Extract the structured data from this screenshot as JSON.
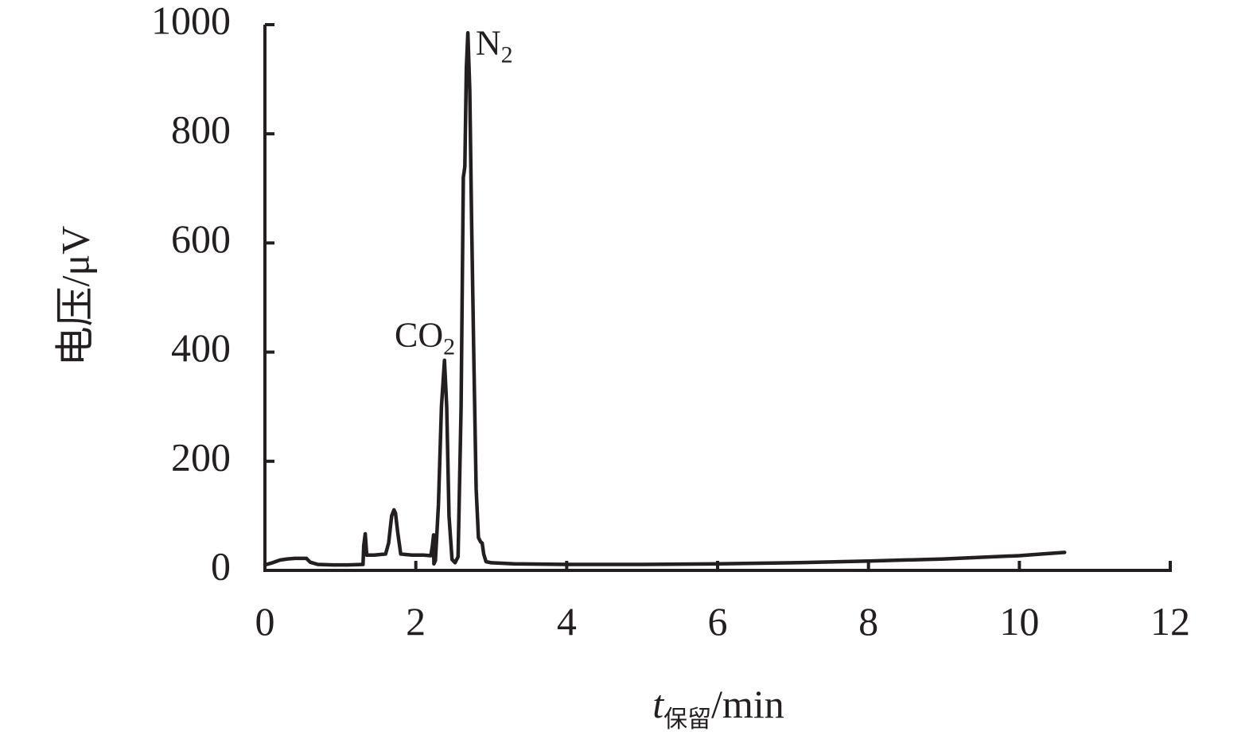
{
  "chart_data": {
    "type": "line",
    "title": "",
    "xlabel": {
      "var": "t",
      "subscript": "保留",
      "unit": "/min"
    },
    "ylabel": "电压/μV",
    "xlim": [
      0,
      12
    ],
    "ylim": [
      0,
      1000
    ],
    "x_ticks": [
      0,
      2,
      4,
      6,
      8,
      10,
      12
    ],
    "y_ticks": [
      0,
      200,
      400,
      600,
      800,
      1000
    ],
    "x_tick_labels": [
      "0",
      "2",
      "4",
      "6",
      "8",
      "10",
      "12"
    ],
    "y_tick_labels": [
      "0",
      "200",
      "400",
      "600",
      "800",
      "1000"
    ],
    "grid": false,
    "annotations": [
      {
        "base": "CO",
        "sub": "2",
        "x": 2.12,
        "y": 410
      },
      {
        "base": "N",
        "sub": "2",
        "x": 3.04,
        "y": 945
      }
    ],
    "series": [
      {
        "color": "#231f20",
        "points": [
          [
            0.0,
            10
          ],
          [
            0.1,
            14
          ],
          [
            0.2,
            19
          ],
          [
            0.3,
            21
          ],
          [
            0.4,
            22
          ],
          [
            0.55,
            22
          ],
          [
            0.6,
            15
          ],
          [
            0.7,
            11
          ],
          [
            0.9,
            10
          ],
          [
            1.1,
            10
          ],
          [
            1.3,
            11
          ],
          [
            1.31,
            45
          ],
          [
            1.33,
            67
          ],
          [
            1.35,
            28
          ],
          [
            1.45,
            28
          ],
          [
            1.6,
            30
          ],
          [
            1.64,
            50
          ],
          [
            1.68,
            100
          ],
          [
            1.71,
            111
          ],
          [
            1.73,
            105
          ],
          [
            1.76,
            70
          ],
          [
            1.8,
            30
          ],
          [
            1.95,
            28
          ],
          [
            2.1,
            28
          ],
          [
            2.2,
            27
          ],
          [
            2.22,
            45
          ],
          [
            2.235,
            65
          ],
          [
            2.24,
            12
          ],
          [
            2.26,
            18
          ],
          [
            2.3,
            120
          ],
          [
            2.34,
            300
          ],
          [
            2.38,
            385
          ],
          [
            2.41,
            300
          ],
          [
            2.44,
            100
          ],
          [
            2.48,
            20
          ],
          [
            2.52,
            14
          ],
          [
            2.56,
            25
          ],
          [
            2.6,
            300
          ],
          [
            2.63,
            720
          ],
          [
            2.65,
            740
          ],
          [
            2.67,
            920
          ],
          [
            2.69,
            985
          ],
          [
            2.715,
            880
          ],
          [
            2.74,
            640
          ],
          [
            2.77,
            380
          ],
          [
            2.8,
            150
          ],
          [
            2.83,
            60
          ],
          [
            2.86,
            52
          ],
          [
            2.88,
            50
          ],
          [
            2.9,
            30
          ],
          [
            2.93,
            16
          ],
          [
            3.0,
            14
          ],
          [
            3.3,
            12
          ],
          [
            4.0,
            11
          ],
          [
            5.0,
            11
          ],
          [
            6.0,
            12
          ],
          [
            7.0,
            14
          ],
          [
            8.0,
            17
          ],
          [
            9.0,
            21
          ],
          [
            9.5,
            24
          ],
          [
            10.0,
            27
          ],
          [
            10.3,
            30
          ],
          [
            10.6,
            33
          ]
        ]
      }
    ]
  }
}
